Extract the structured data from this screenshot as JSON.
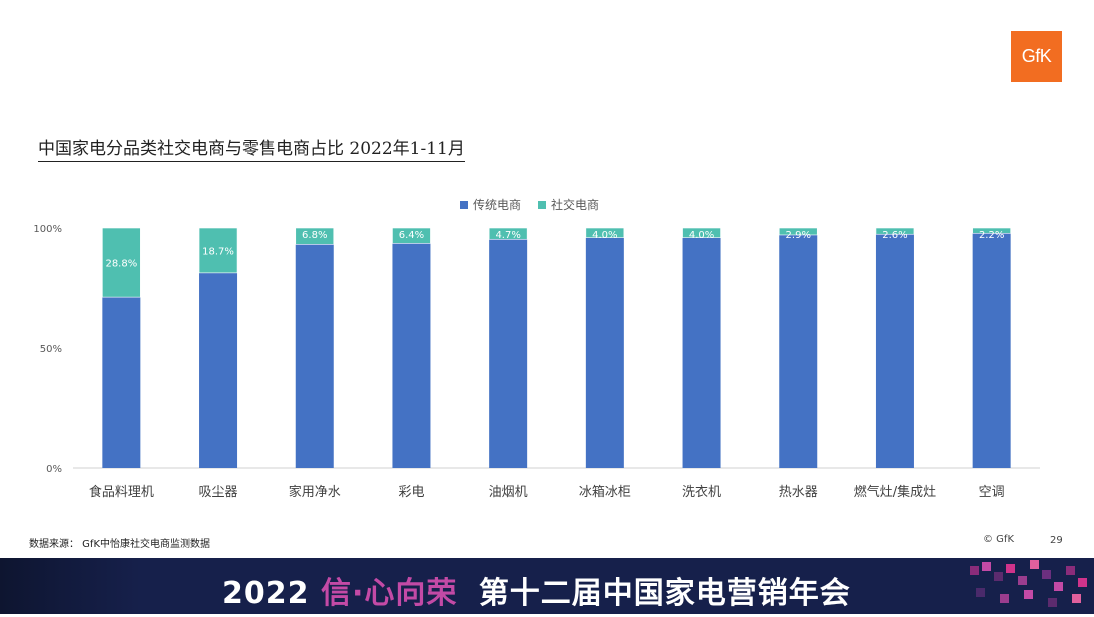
{
  "logo_text": "GfK",
  "title": "中国家电分品类社交电商与零售电商占比 2022年1-11月",
  "source": "数据来源： GfK中怡康社交电商监测数据",
  "copyright": "© GfK",
  "page_number": "29",
  "banner": {
    "year": "2022",
    "slogan": "信·心向荣",
    "event": "第十二届中国家电营销年会"
  },
  "chart_data": {
    "type": "bar",
    "stacked": true,
    "categories": [
      "食品料理机",
      "吸尘器",
      "家用净水",
      "彩电",
      "油烟机",
      "冰箱冰柜",
      "洗衣机",
      "热水器",
      "燃气灶/集成灶",
      "空调"
    ],
    "series": [
      {
        "name": "传统电商",
        "color": "#4472c4",
        "values": [
          71.2,
          81.3,
          93.2,
          93.6,
          95.3,
          96.0,
          96.0,
          97.1,
          97.4,
          97.8
        ]
      },
      {
        "name": "社交电商",
        "color": "#4fbfb0",
        "values": [
          28.8,
          18.7,
          6.8,
          6.4,
          4.7,
          4.0,
          4.0,
          2.9,
          2.6,
          2.2
        ]
      }
    ],
    "data_labels": [
      "28.8%",
      "18.7%",
      "6.8%",
      "6.4%",
      "4.7%",
      "4.0%",
      "4.0%",
      "2.9%",
      "2.6%",
      "2.2%"
    ],
    "yticks": [
      "0%",
      "50%",
      "100%"
    ],
    "ylim": [
      0,
      100
    ],
    "legend_position": "top-center",
    "grid": false
  }
}
